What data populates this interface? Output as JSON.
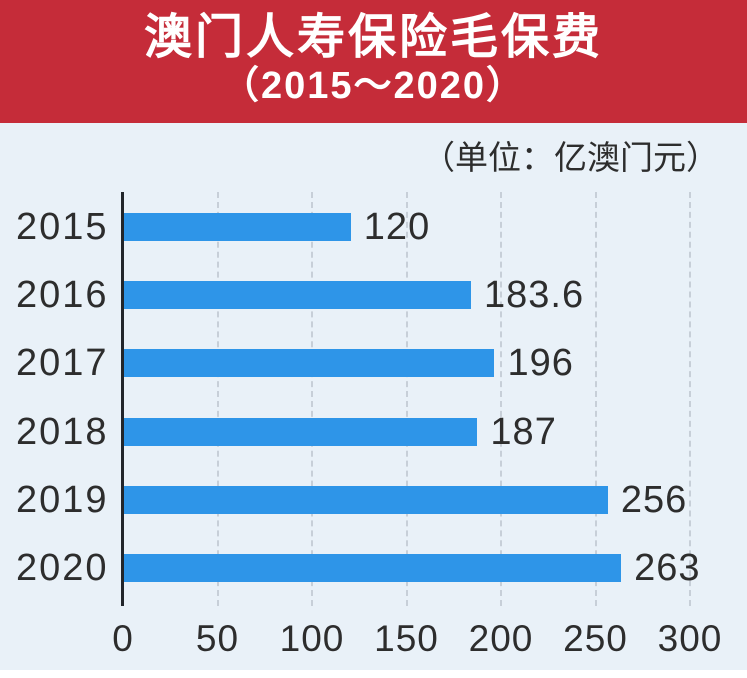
{
  "header": {
    "title": "澳门人寿保险毛保费",
    "subtitle": "（2015～2020）"
  },
  "chart_data": {
    "type": "bar",
    "orientation": "horizontal",
    "title": "澳门人寿保险毛保费",
    "subtitle": "（2015～2020）",
    "unit_label": "（单位：亿澳门元）",
    "unit": "亿澳门元",
    "categories": [
      "2015",
      "2016",
      "2017",
      "2018",
      "2019",
      "2020"
    ],
    "values": [
      120,
      183.6,
      196,
      187,
      256,
      263
    ],
    "value_labels": [
      "120",
      "183.6",
      "196",
      "187",
      "256",
      "263"
    ],
    "xlim": [
      0,
      300
    ],
    "x_ticks": [
      0,
      50,
      100,
      150,
      200,
      250,
      300
    ],
    "grid": "vertical-dashed",
    "legend": "none"
  },
  "colors": {
    "banner_background": "#c52c39",
    "banner_text": "#ffffff",
    "panel_background": "#e9f1f8",
    "page_background": "#ffffff",
    "bar_fill": "#2e95e8",
    "label_text": "#2d2d2d",
    "axis_line": "#22262b",
    "gridline": "#c7cfd8"
  }
}
